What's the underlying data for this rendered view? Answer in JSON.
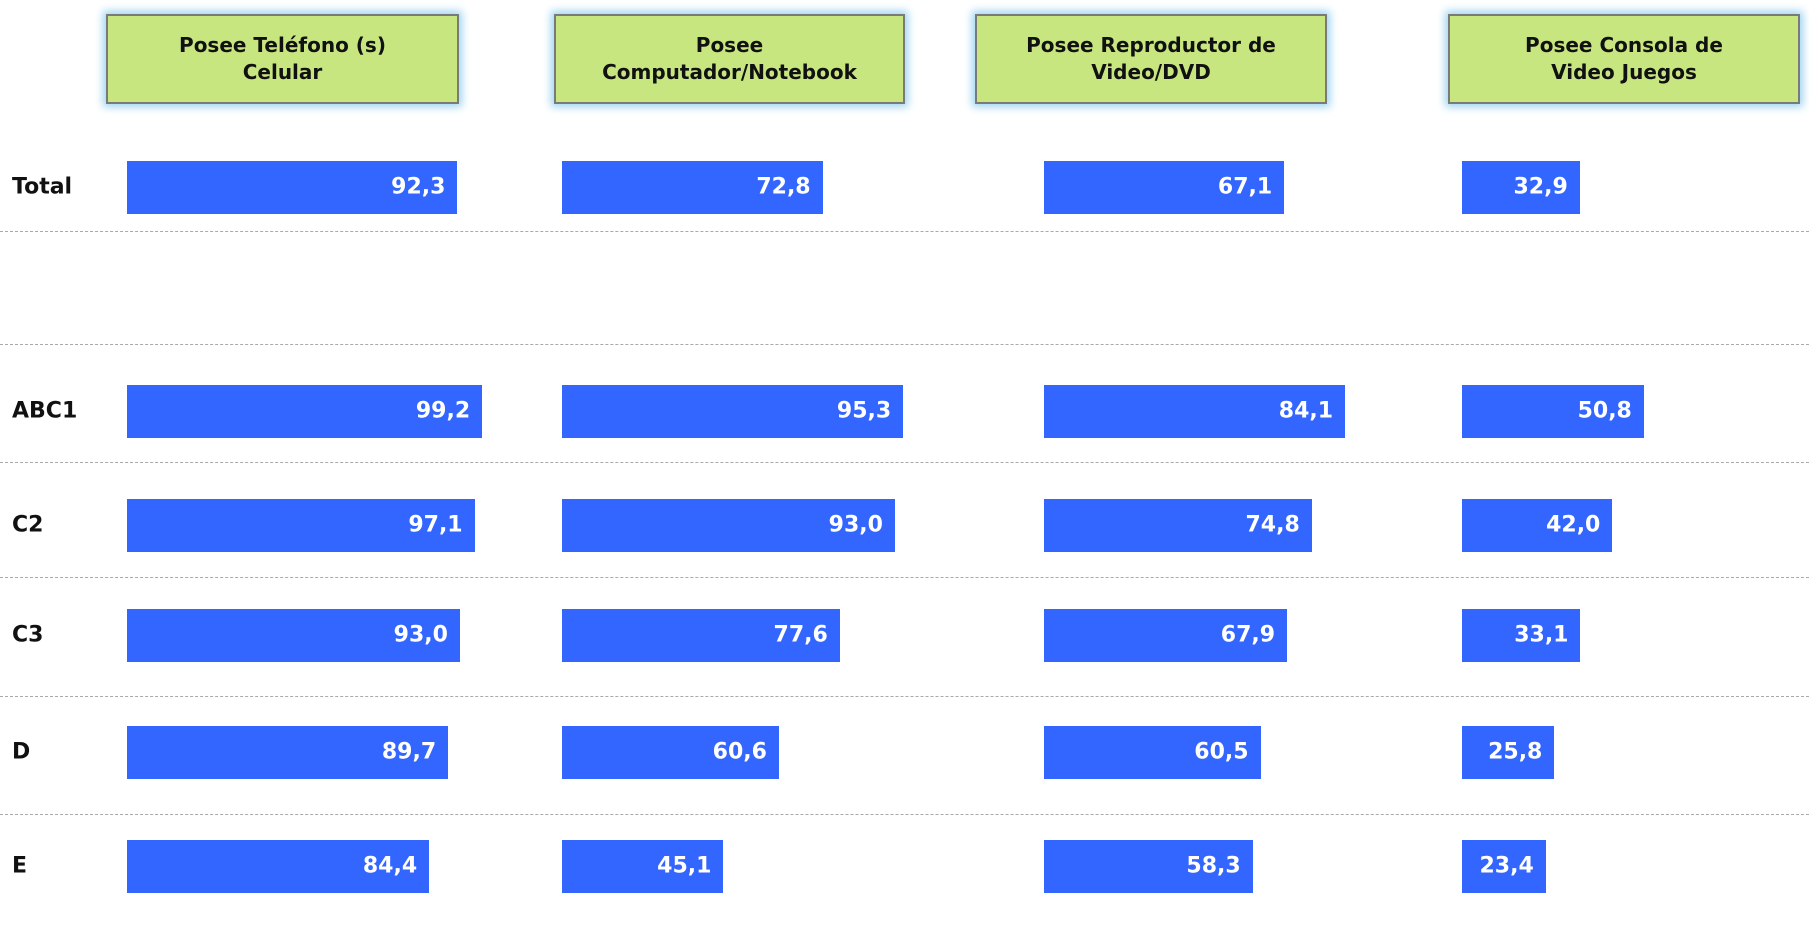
{
  "chart_data": {
    "type": "bar",
    "orientation": "horizontal",
    "color": "#3366ff",
    "categories": [
      "Total",
      "ABC1",
      "C2",
      "C3",
      "D",
      "E"
    ],
    "series": [
      {
        "name": "Posee Teléfono (s) Celular",
        "values": [
          92.3,
          99.2,
          97.1,
          93.0,
          89.7,
          84.4
        ],
        "value_labels": [
          "92,3",
          "99,2",
          "97,1",
          "93,0",
          "89,7",
          "84,4"
        ]
      },
      {
        "name": "Posee Computador/Notebook",
        "values": [
          72.8,
          95.3,
          93.0,
          77.6,
          60.6,
          45.1
        ],
        "value_labels": [
          "72,8",
          "95,3",
          "93,0",
          "77,6",
          "60,6",
          "45,1"
        ]
      },
      {
        "name": "Posee Reproductor de Video/DVD",
        "values": [
          67.1,
          84.1,
          74.8,
          67.9,
          60.5,
          58.3
        ],
        "value_labels": [
          "67,1",
          "84,1",
          "74,8",
          "67,9",
          "60,5",
          "58,3"
        ]
      },
      {
        "name": "Posee Consola de Video Juegos",
        "values": [
          32.9,
          50.8,
          42.0,
          33.1,
          25.8,
          23.4
        ],
        "value_labels": [
          "32,9",
          "50,8",
          "42,0",
          "33,1",
          "25,8",
          "23,4"
        ]
      }
    ]
  }
}
